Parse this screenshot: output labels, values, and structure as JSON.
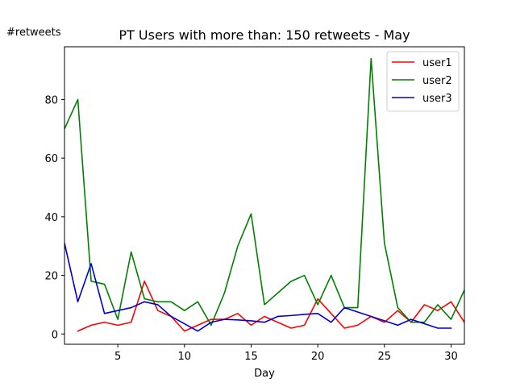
{
  "chart_data": {
    "type": "line",
    "title": "PT Users with more than: 150 retweets - May",
    "xlabel": "Day",
    "ylabel": "#retweets",
    "xlim": [
      1,
      31
    ],
    "ylim": [
      -3.5,
      98
    ],
    "xticks": [
      5,
      10,
      15,
      20,
      25,
      30
    ],
    "yticks": [
      0,
      20,
      40,
      60,
      80
    ],
    "grid": false,
    "legend_position": "top-right",
    "series": [
      {
        "name": "user1",
        "color": "#ff0000",
        "x": [
          2,
          3,
          4,
          5,
          6,
          7,
          8,
          9,
          10,
          11,
          12,
          13,
          14,
          15,
          16,
          17,
          18,
          19,
          20,
          21,
          22,
          23,
          24,
          25,
          26,
          27,
          28,
          29,
          30,
          31
        ],
        "values": [
          1,
          3,
          4,
          3,
          4,
          18,
          8,
          6,
          1,
          3,
          5,
          5,
          7,
          3,
          6,
          4,
          2,
          3,
          12,
          7,
          2,
          3,
          6,
          4,
          8,
          4,
          10,
          8,
          11,
          4
        ]
      },
      {
        "name": "user2",
        "color": "#008000",
        "x": [
          1,
          2,
          3,
          4,
          5,
          6,
          7,
          8,
          9,
          10,
          11,
          12,
          13,
          14,
          15,
          16,
          17,
          18,
          19,
          20,
          21,
          22,
          23,
          24,
          25,
          26,
          27,
          28,
          29,
          30,
          31
        ],
        "values": [
          70,
          80,
          18,
          17,
          5,
          28,
          12,
          11,
          11,
          8,
          11,
          3,
          14,
          30,
          41,
          10,
          14,
          18,
          20,
          10,
          20,
          9,
          9,
          94,
          31,
          9,
          4,
          4,
          10,
          5,
          15
        ]
      },
      {
        "name": "user3",
        "color": "#0000cc",
        "x": [
          1,
          2,
          3,
          4,
          5,
          6,
          7,
          8,
          9,
          10,
          11,
          12,
          13,
          14,
          15,
          16,
          17,
          18,
          19,
          20,
          21,
          22,
          23,
          24,
          25,
          26,
          27,
          28,
          29,
          30
        ],
        "values": [
          31,
          11,
          24,
          7,
          8,
          9,
          11,
          10,
          6,
          3.5,
          1,
          4,
          5,
          4.8,
          4.5,
          4,
          6,
          6.3,
          6.7,
          7,
          4,
          9,
          7.5,
          6,
          4.5,
          3,
          5,
          3.5,
          2,
          2
        ]
      }
    ]
  }
}
